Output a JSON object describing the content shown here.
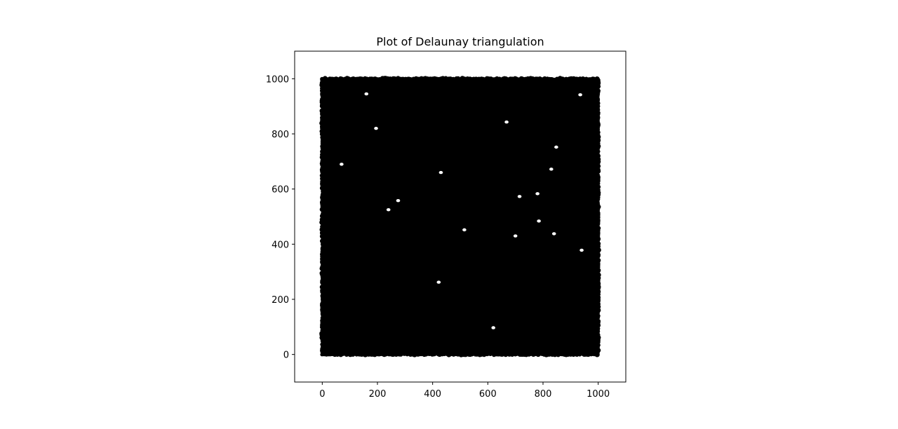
{
  "chart_data": {
    "type": "scatter",
    "title": "Plot of Delaunay triangulation",
    "xlabel": "",
    "ylabel": "",
    "xlim": [
      -100,
      1100
    ],
    "ylim": [
      -100,
      1100
    ],
    "x_ticks": [
      "0",
      "200",
      "400",
      "600",
      "800",
      "1000"
    ],
    "y_ticks": [
      "0",
      "200",
      "400",
      "600",
      "800",
      "1000"
    ],
    "grid": false,
    "legend": "none",
    "aspect": "equal",
    "marker": "circle",
    "point_color": "#000000",
    "edge_color": "#000000",
    "background_color": "#ffffff",
    "data_extent": {
      "x": [
        0,
        1000
      ],
      "y": [
        0,
        1000
      ]
    },
    "visible_gaps": [
      {
        "x": 195,
        "y": 820
      },
      {
        "x": 848,
        "y": 752
      },
      {
        "x": 422,
        "y": 262
      },
      {
        "x": 240,
        "y": 525
      },
      {
        "x": 275,
        "y": 558
      },
      {
        "x": 715,
        "y": 573
      },
      {
        "x": 780,
        "y": 583
      },
      {
        "x": 785,
        "y": 484
      },
      {
        "x": 700,
        "y": 430
      },
      {
        "x": 620,
        "y": 97
      },
      {
        "x": 70,
        "y": 690
      },
      {
        "x": 515,
        "y": 452
      },
      {
        "x": 840,
        "y": 438
      },
      {
        "x": 940,
        "y": 378
      },
      {
        "x": 430,
        "y": 660
      },
      {
        "x": 160,
        "y": 945
      },
      {
        "x": 935,
        "y": 942
      },
      {
        "x": 830,
        "y": 672
      },
      {
        "x": 668,
        "y": 843
      }
    ]
  }
}
